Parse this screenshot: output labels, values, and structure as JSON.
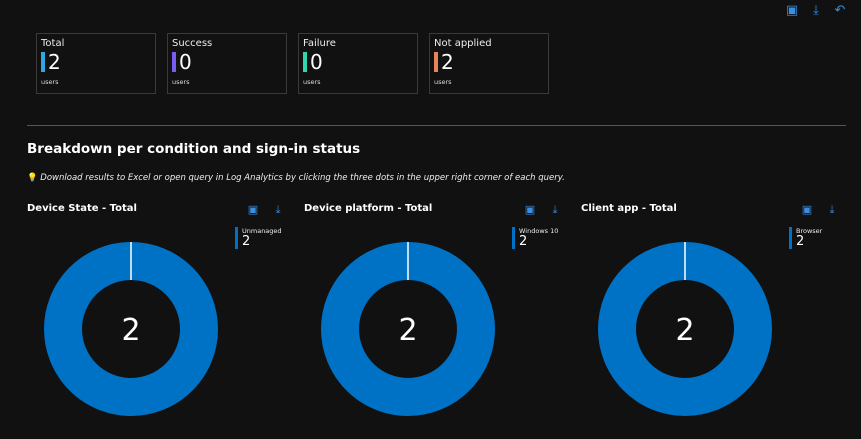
{
  "toolbar": {
    "icons": [
      "pin-icon",
      "download-icon",
      "refresh-icon"
    ],
    "accent": "#3a8de0"
  },
  "tiles": [
    {
      "label": "Total",
      "value": "2",
      "unit": "users",
      "color": "#2ea8e0"
    },
    {
      "label": "Success",
      "value": "0",
      "unit": "users",
      "color": "#7b5cf0"
    },
    {
      "label": "Failure",
      "value": "0",
      "unit": "users",
      "color": "#2fd6b0"
    },
    {
      "label": "Not applied",
      "value": "2",
      "unit": "users",
      "color": "#e8845c"
    }
  ],
  "section": {
    "title": "Breakdown per condition and sign-in status",
    "hint": "Download results to Excel or open query in Log Analytics by clicking the three dots in the upper right corner of each query.",
    "hint_icon": "lightbulb-icon"
  },
  "charts": [
    {
      "title": "Device State - Total",
      "center": "2",
      "legend": {
        "name": "Unmanaged",
        "value": "2"
      }
    },
    {
      "title": "Device platform - Total",
      "center": "2",
      "legend": {
        "name": "Windows 10",
        "value": "2"
      }
    },
    {
      "title": "Client app - Total",
      "center": "2",
      "legend": {
        "name": "Browser",
        "value": "2"
      }
    }
  ],
  "chart_data": [
    {
      "type": "pie",
      "title": "Device State - Total",
      "categories": [
        "Unmanaged"
      ],
      "values": [
        2
      ],
      "colors": [
        "#0072c6"
      ]
    },
    {
      "type": "pie",
      "title": "Device platform - Total",
      "categories": [
        "Windows 10"
      ],
      "values": [
        2
      ],
      "colors": [
        "#0072c6"
      ]
    },
    {
      "type": "pie",
      "title": "Client app - Total",
      "categories": [
        "Browser"
      ],
      "values": [
        2
      ],
      "colors": [
        "#0072c6"
      ]
    }
  ]
}
